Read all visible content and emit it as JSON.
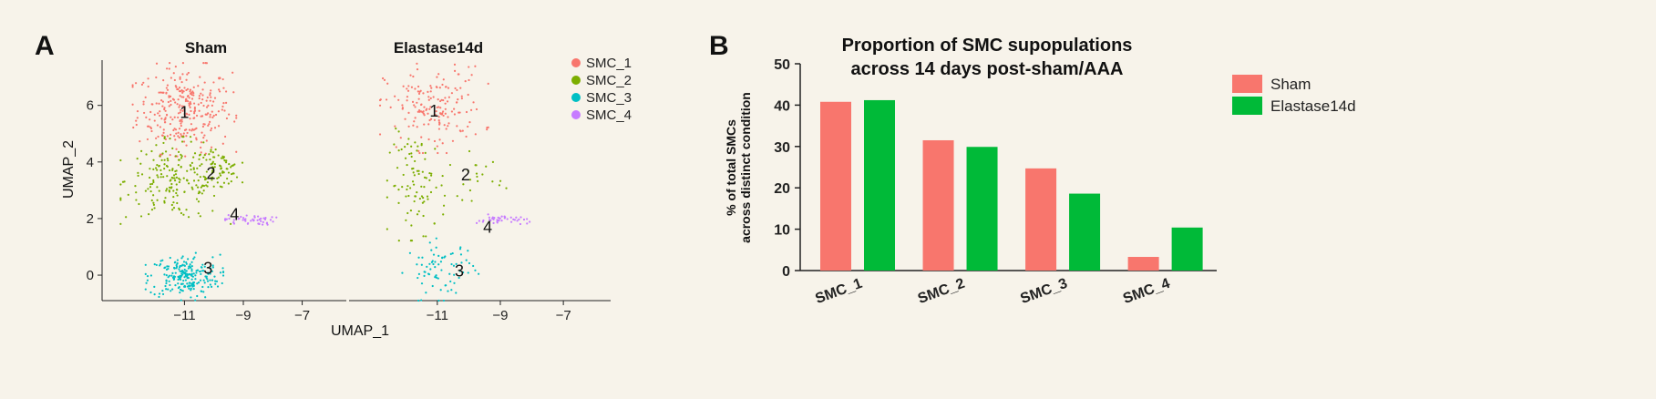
{
  "colors": {
    "background": "#f7f3ea",
    "SMC_1": "#f8766d",
    "SMC_2": "#7cae00",
    "SMC_3": "#00bfc4",
    "SMC_4": "#c77cff",
    "sham_bar": "#f8766d",
    "elastase_bar": "#00ba38"
  },
  "panel_a": {
    "letter": "A",
    "legend": [
      "SMC_1",
      "SMC_2",
      "SMC_3",
      "SMC_4"
    ],
    "xlabel": "UMAP_1",
    "ylabel": "UMAP_2"
  },
  "panel_b": {
    "letter": "B"
  },
  "chart_data": [
    {
      "type": "scatter",
      "title": "Sham",
      "xlabel": "UMAP_1",
      "ylabel": "UMAP_2",
      "xlim": [
        -13.8,
        -5.5
      ],
      "ylim": [
        -0.9,
        7.6
      ],
      "xticks": [
        -11,
        -9,
        -7
      ],
      "yticks": [
        0,
        2,
        4,
        6
      ],
      "series": [
        {
          "name": "SMC_1",
          "label": "1",
          "label_at": [
            -11.0,
            5.55
          ],
          "n": 300,
          "blobs": [
            {
              "cx": -11.0,
              "cy": 5.85,
              "sx": 0.8,
              "sy": 0.75,
              "w": 1
            }
          ]
        },
        {
          "name": "SMC_2",
          "label": "2",
          "label_at": [
            -10.1,
            3.4
          ],
          "n": 260,
          "blobs": [
            {
              "cx": -11.3,
              "cy": 3.35,
              "sx": 0.85,
              "sy": 0.7,
              "w": 0.75
            },
            {
              "cx": -9.8,
              "cy": 3.75,
              "sx": 0.35,
              "sy": 0.28,
              "w": 0.25
            }
          ]
        },
        {
          "name": "SMC_3",
          "label": "3",
          "label_at": [
            -10.2,
            0.05
          ],
          "n": 220,
          "blobs": [
            {
              "cx": -11.0,
              "cy": -0.05,
              "sx": 0.6,
              "sy": 0.38,
              "w": 1
            }
          ]
        },
        {
          "name": "SMC_4",
          "label": "4",
          "label_at": [
            -9.3,
            1.95
          ],
          "n": 45,
          "blobs": [
            {
              "cx": -8.8,
              "cy": 1.95,
              "sx": 0.42,
              "sy": 0.09,
              "w": 1
            }
          ]
        }
      ]
    },
    {
      "type": "scatter",
      "title": "Elastase14d",
      "xlabel": "UMAP_1",
      "ylabel": "UMAP_2",
      "xlim": [
        -13.8,
        -5.5
      ],
      "ylim": [
        -0.9,
        7.6
      ],
      "xticks": [
        -11,
        -9,
        -7
      ],
      "yticks": [
        0,
        2,
        4,
        6
      ],
      "series": [
        {
          "name": "SMC_1",
          "label": "1",
          "label_at": [
            -11.1,
            5.6
          ],
          "n": 170,
          "blobs": [
            {
              "cx": -11.1,
              "cy": 5.9,
              "sx": 0.78,
              "sy": 0.72,
              "w": 1
            }
          ]
        },
        {
          "name": "SMC_2",
          "label": "2",
          "label_at": [
            -10.1,
            3.35
          ],
          "n": 110,
          "blobs": [
            {
              "cx": -11.6,
              "cy": 3.2,
              "sx": 0.45,
              "sy": 0.9,
              "w": 0.8
            },
            {
              "cx": -9.8,
              "cy": 3.5,
              "sx": 0.45,
              "sy": 0.4,
              "w": 0.2
            }
          ]
        },
        {
          "name": "SMC_3",
          "label": "3",
          "label_at": [
            -10.3,
            -0.05
          ],
          "n": 75,
          "blobs": [
            {
              "cx": -10.9,
              "cy": 0.2,
              "sx": 0.55,
              "sy": 0.5,
              "w": 1
            }
          ]
        },
        {
          "name": "SMC_4",
          "label": "4",
          "label_at": [
            -9.4,
            1.5
          ],
          "n": 40,
          "blobs": [
            {
              "cx": -8.95,
              "cy": 1.95,
              "sx": 0.4,
              "sy": 0.09,
              "w": 1
            }
          ]
        }
      ]
    },
    {
      "type": "bar",
      "title": [
        "Proportion of SMC supopulations",
        "across 14 days post-sham/AAA"
      ],
      "ylabel": [
        "% of total SMCs",
        "across distinct condition"
      ],
      "categories": [
        "SMC_1",
        "SMC_2",
        "SMC_3",
        "SMC_4"
      ],
      "series": [
        {
          "name": "Sham",
          "values": [
            40.8,
            31.5,
            24.7,
            3.3
          ]
        },
        {
          "name": "Elastase14d",
          "values": [
            41.2,
            29.9,
            18.6,
            10.4
          ]
        }
      ],
      "ylim": [
        0,
        50
      ],
      "yticks": [
        0,
        10,
        20,
        30,
        40,
        50
      ],
      "legend": "top-right"
    }
  ]
}
